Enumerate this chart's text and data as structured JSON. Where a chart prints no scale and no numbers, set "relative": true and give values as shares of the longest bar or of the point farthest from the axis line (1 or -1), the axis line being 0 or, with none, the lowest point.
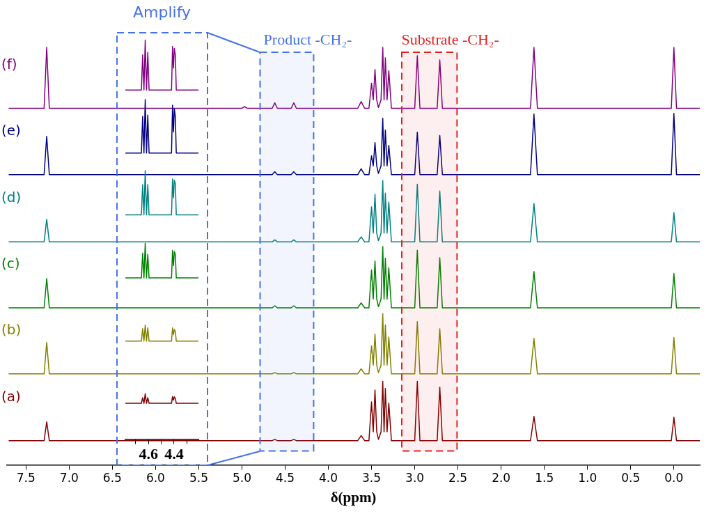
{
  "chart_data": [
    {
      "type": "line",
      "relative": true,
      "xlabel": "δ(ppm)",
      "xlim": [
        7.72,
        -0.3
      ],
      "xticks": [
        7.5,
        {
          "value": 7,
          "label": "7.0"
        },
        6.5,
        {
          "value": 6,
          "label": "6.0"
        },
        5.5,
        {
          "value": 5,
          "label": "5.0"
        },
        4.5,
        {
          "value": 4,
          "label": "4.0"
        },
        3.5,
        {
          "value": 3,
          "label": "3.0"
        },
        2.5,
        {
          "value": 2,
          "label": "2.0"
        },
        1.5,
        {
          "value": 1,
          "label": "1.0"
        },
        0.5,
        {
          "value": 0,
          "label": "0.0"
        }
      ],
      "x": [
        7.7,
        7.29,
        7.26,
        7.23,
        5.0,
        4.97,
        4.94,
        4.65,
        4.62,
        4.59,
        4.43,
        4.4,
        4.37,
        3.66,
        3.62,
        3.58,
        3.53,
        3.5,
        3.48,
        3.46,
        3.44,
        3.42,
        3.39,
        3.37,
        3.355,
        3.34,
        3.32,
        3.3,
        3.27,
        3.0,
        2.97,
        2.94,
        2.74,
        2.71,
        2.68,
        1.66,
        1.62,
        1.58,
        0.03,
        0.0,
        -0.03,
        -0.3
      ],
      "series": [
        {
          "name": "(a)",
          "color": "#800000",
          "values": [
            0.058,
            0.058,
            0.103,
            0.058,
            0.058,
            0.058,
            0.058,
            0.058,
            0.061,
            0.058,
            0.058,
            0.061,
            0.058,
            0.058,
            0.07,
            0.058,
            0.058,
            0.151,
            0.079,
            0.179,
            0.079,
            0.061,
            0.079,
            0.2,
            0.079,
            0.183,
            0.079,
            0.148,
            0.058,
            0.058,
            0.2,
            0.058,
            0.058,
            0.186,
            0.058,
            0.058,
            0.116,
            0.058,
            0.058,
            0.114,
            0.058,
            0.058
          ]
        },
        {
          "name": "(b)",
          "color": "#808000",
          "values": [
            0.218,
            0.218,
            0.293,
            0.218,
            0.218,
            0.218,
            0.218,
            0.218,
            0.221,
            0.218,
            0.218,
            0.221,
            0.218,
            0.218,
            0.23,
            0.218,
            0.218,
            0.285,
            0.239,
            0.313,
            0.239,
            0.221,
            0.239,
            0.362,
            0.239,
            0.335,
            0.239,
            0.306,
            0.218,
            0.218,
            0.343,
            0.218,
            0.218,
            0.326,
            0.218,
            0.218,
            0.303,
            0.218,
            0.218,
            0.305,
            0.218,
            0.218
          ]
        },
        {
          "name": "(c)",
          "color": "#008000",
          "values": [
            0.376,
            0.376,
            0.446,
            0.376,
            0.376,
            0.376,
            0.376,
            0.376,
            0.381,
            0.376,
            0.376,
            0.381,
            0.376,
            0.376,
            0.388,
            0.376,
            0.376,
            0.467,
            0.397,
            0.488,
            0.397,
            0.379,
            0.397,
            0.523,
            0.397,
            0.495,
            0.397,
            0.472,
            0.376,
            0.376,
            0.514,
            0.376,
            0.376,
            0.496,
            0.376,
            0.376,
            0.463,
            0.376,
            0.376,
            0.458,
            0.376,
            0.376
          ]
        },
        {
          "name": "(d)",
          "color": "#008080",
          "values": [
            0.534,
            0.534,
            0.588,
            0.534,
            0.534,
            0.534,
            0.534,
            0.534,
            0.539,
            0.534,
            0.534,
            0.539,
            0.534,
            0.534,
            0.546,
            0.534,
            0.534,
            0.618,
            0.555,
            0.648,
            0.555,
            0.537,
            0.555,
            0.681,
            0.555,
            0.651,
            0.555,
            0.629,
            0.534,
            0.534,
            0.672,
            0.534,
            0.534,
            0.656,
            0.534,
            0.534,
            0.626,
            0.534,
            0.534,
            0.604,
            0.534,
            0.534
          ]
        },
        {
          "name": "(e)",
          "color": "#000080",
          "values": [
            0.695,
            0.695,
            0.787,
            0.695,
            0.695,
            0.695,
            0.695,
            0.695,
            0.702,
            0.695,
            0.695,
            0.702,
            0.695,
            0.695,
            0.709,
            0.695,
            0.695,
            0.74,
            0.716,
            0.772,
            0.716,
            0.698,
            0.716,
            0.83,
            0.716,
            0.802,
            0.716,
            0.765,
            0.695,
            0.695,
            0.797,
            0.695,
            0.695,
            0.789,
            0.695,
            0.695,
            0.84,
            0.695,
            0.695,
            0.842,
            0.695,
            0.695
          ]
        },
        {
          "name": "(f)",
          "color": "#800080",
          "values": [
            0.854,
            0.854,
            1.0,
            0.854,
            0.854,
            0.858,
            0.854,
            0.854,
            0.867,
            0.854,
            0.854,
            0.867,
            0.854,
            0.854,
            0.87,
            0.854,
            0.854,
            0.914,
            0.874,
            0.947,
            0.874,
            0.856,
            0.874,
            1.0,
            0.874,
            0.975,
            0.874,
            0.944,
            0.854,
            0.854,
            0.98,
            0.854,
            0.854,
            0.97,
            0.854,
            0.854,
            1.0,
            0.854,
            0.854,
            1.0,
            0.854,
            0.854
          ]
        }
      ],
      "bands": [
        {
          "axis": "x",
          "from": 4.79,
          "to": 4.17,
          "label": "Product -CH₂-",
          "color": "#4472e8"
        },
        {
          "axis": "x",
          "from": 3.15,
          "to": 2.51,
          "label": "Substrate -CH₂-",
          "color": "#e82020"
        }
      ]
    },
    {
      "type": "line",
      "relative": true,
      "title": "Amplify",
      "tick_labels": "x",
      "xlim": [
        4.78,
        4.21
      ],
      "xticks": [
        {
          "value": 4.7,
          "label": null
        },
        4.6,
        {
          "value": 4.5,
          "label": null
        },
        4.4,
        {
          "value": 4.3,
          "label": null
        }
      ],
      "x": [
        4.78,
        4.655,
        4.645,
        4.635,
        4.625,
        4.615,
        4.605,
        4.595,
        4.42,
        4.412,
        4.405,
        4.398,
        4.39,
        4.383,
        4.21
      ],
      "series": [
        {
          "color": "#800000",
          "values": [
            0.09,
            0.09,
            0.104,
            0.09,
            0.114,
            0.09,
            0.104,
            0.09,
            0.09,
            0.107,
            0.098,
            0.106,
            0.102,
            0.09,
            0.09
          ]
        },
        {
          "color": "#808000",
          "values": [
            0.246,
            0.246,
            0.277,
            0.246,
            0.286,
            0.246,
            0.279,
            0.246,
            0.246,
            0.279,
            0.262,
            0.275,
            0.27,
            0.246,
            0.246
          ]
        },
        {
          "color": "#008000",
          "values": [
            0.404,
            0.404,
            0.466,
            0.404,
            0.491,
            0.404,
            0.463,
            0.404,
            0.404,
            0.473,
            0.435,
            0.47,
            0.463,
            0.404,
            0.404
          ]
        },
        {
          "color": "#008080",
          "values": [
            0.562,
            0.562,
            0.638,
            0.562,
            0.673,
            0.562,
            0.638,
            0.562,
            0.562,
            0.652,
            0.605,
            0.649,
            0.64,
            0.562,
            0.562
          ]
        },
        {
          "color": "#000080",
          "values": [
            0.717,
            0.717,
            0.809,
            0.717,
            0.851,
            0.717,
            0.812,
            0.717,
            0.717,
            0.837,
            0.77,
            0.828,
            0.807,
            0.717,
            0.717
          ]
        },
        {
          "color": "#800080",
          "values": [
            0.875,
            0.875,
            0.963,
            0.875,
            1.0,
            0.875,
            0.969,
            0.875,
            0.875,
            0.984,
            0.93,
            0.979,
            0.962,
            0.875,
            0.875
          ]
        }
      ]
    }
  ]
}
